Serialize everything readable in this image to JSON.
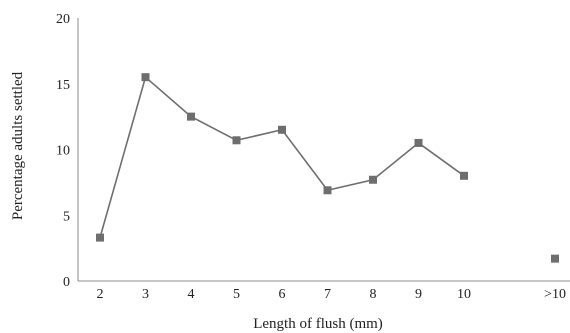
{
  "chart_data": {
    "type": "line",
    "title": "",
    "xlabel": "Length of flush (mm)",
    "ylabel": "Percentage adults settled",
    "categories": [
      "2",
      "3",
      "4",
      "5",
      "6",
      "7",
      "8",
      "9",
      "10",
      "",
      ">10"
    ],
    "y_ticks": [
      "0",
      "5",
      "10",
      "15",
      "20"
    ],
    "ylim": [
      0,
      20
    ],
    "grid": false,
    "legend": "none",
    "colors": {
      "series": "#6e6e6e",
      "axis": "#8c8c8c"
    },
    "series": [
      {
        "values": [
          3.3,
          15.5,
          12.5,
          10.7,
          11.5,
          6.9,
          7.7,
          10.5,
          8.0,
          null,
          1.7
        ]
      }
    ]
  }
}
